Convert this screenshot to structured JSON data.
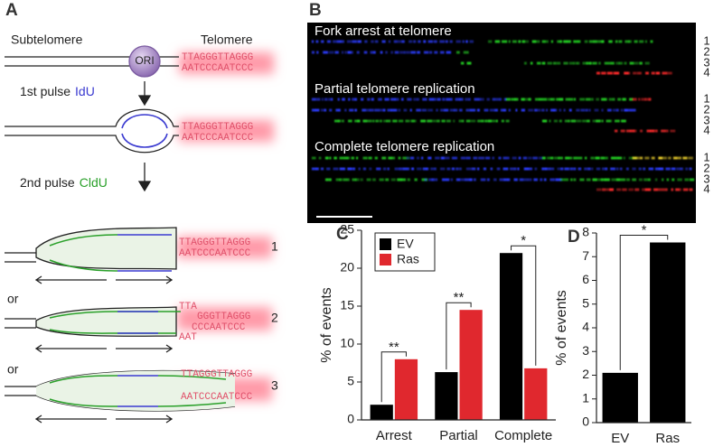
{
  "panel_a": {
    "label": "A",
    "subtelomere": "Subtelomere",
    "telomere": "Telomere",
    "ori": "ORI",
    "pulse1": "1st pulse",
    "pulse1_label": "IdU",
    "pulse2": "2nd pulse",
    "pulse2_label": "CldU",
    "strands": [
      [
        "TTAGGGTTAGGG",
        "AATCCCAATCCC"
      ],
      [
        "TTAGGGTTAGGG",
        "AATCCCAATCCC"
      ],
      [
        "TTAGGGTTAGGG",
        "AATCCCAATCCC"
      ],
      [
        "TTAGGGTTAGGG",
        "AATCCCAATCCC"
      ]
    ],
    "outcome2": [
      "TTA",
      "GGGTTAGGG",
      "CCCAATCCC",
      "AAT"
    ],
    "or": [
      "or",
      "or"
    ],
    "outcomes": [
      "1",
      "2",
      "3"
    ]
  },
  "panel_b": {
    "label": "B",
    "groups": [
      {
        "title": "Fork arrest at telomere",
        "rows": [
          "1",
          "2",
          "3",
          "4"
        ]
      },
      {
        "title": "Partial telomere replication",
        "rows": [
          "1",
          "2",
          "3",
          "4"
        ]
      },
      {
        "title": "Complete telomere replication",
        "rows": [
          "1",
          "2",
          "3",
          "4"
        ]
      }
    ]
  },
  "chart_data": [
    {
      "type": "bar",
      "label": "C",
      "y_label": "% of events",
      "categories": [
        "Arrest",
        "Partial",
        "Complete"
      ],
      "series": [
        {
          "name": "EV",
          "color": "#000000",
          "values": [
            2,
            6.3,
            22
          ]
        },
        {
          "name": "Ras",
          "color": "#e0282e",
          "values": [
            8,
            14.5,
            6.8
          ]
        }
      ],
      "annotations": [
        "**",
        "**",
        "*"
      ],
      "ylim": [
        0,
        25
      ],
      "yticks": [
        0,
        5,
        10,
        15,
        20,
        25
      ],
      "legend": "upper left"
    },
    {
      "type": "bar",
      "label": "D",
      "y_label": "% of events",
      "categories": [
        "EV",
        "Ras"
      ],
      "values": [
        2.1,
        7.6
      ],
      "color": "#000000",
      "annotations": [
        "*"
      ],
      "ylim": [
        0,
        8
      ],
      "yticks": [
        0,
        1,
        2,
        3,
        4,
        5,
        6,
        7,
        8
      ]
    }
  ]
}
